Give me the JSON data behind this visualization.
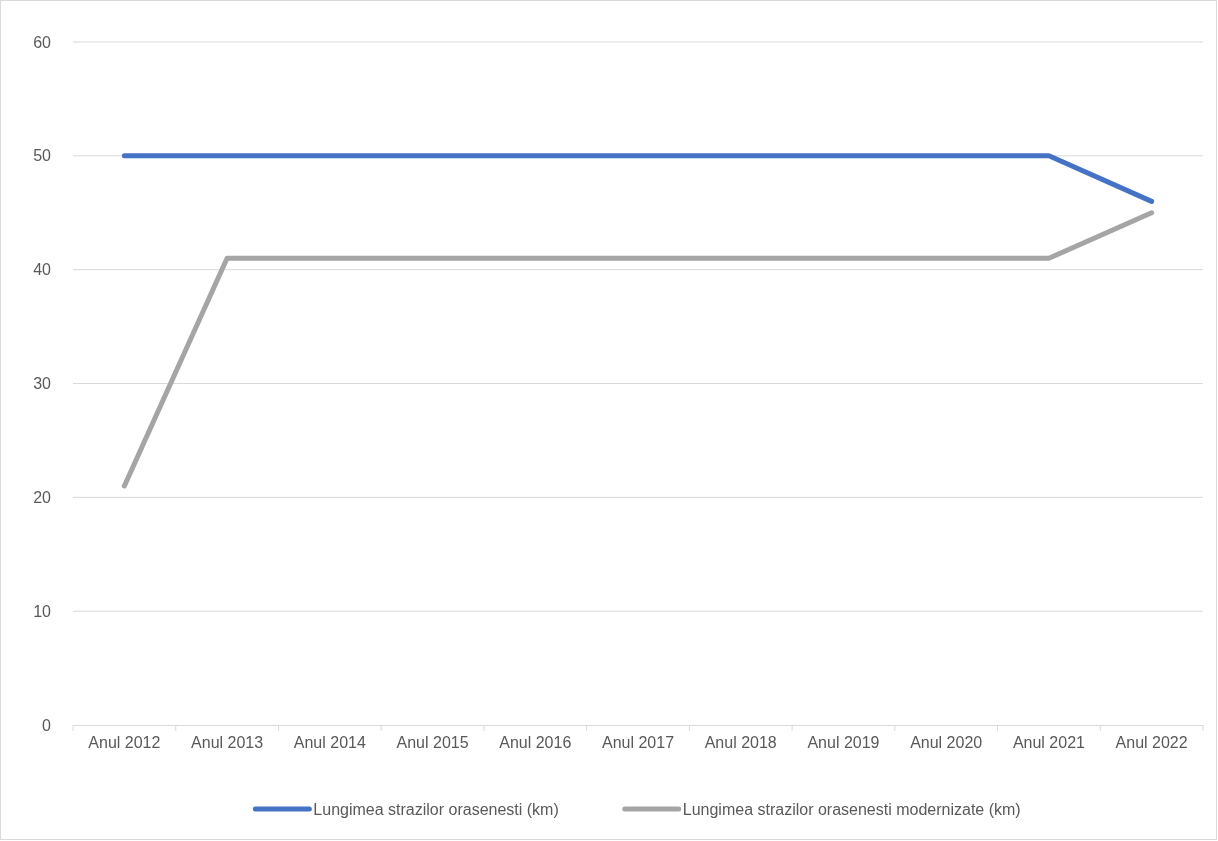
{
  "chart_data": {
    "type": "line",
    "categories": [
      "Anul 2012",
      "Anul 2013",
      "Anul 2014",
      "Anul 2015",
      "Anul 2016",
      "Anul 2017",
      "Anul 2018",
      "Anul 2019",
      "Anul 2020",
      "Anul 2021",
      "Anul 2022"
    ],
    "series": [
      {
        "name": "Lungimea strazilor orasenesti (km)",
        "color": "#4472c4",
        "values": [
          50,
          50,
          50,
          50,
          50,
          50,
          50,
          50,
          50,
          50,
          46
        ]
      },
      {
        "name": "Lungimea strazilor orasenesti modernizate (km)",
        "color": "#a5a5a5",
        "values": [
          21,
          41,
          41,
          41,
          41,
          41,
          41,
          41,
          41,
          41,
          45
        ]
      }
    ],
    "ylim": [
      0,
      60
    ],
    "yticks": [
      0,
      10,
      20,
      30,
      40,
      50,
      60
    ],
    "grid": "y",
    "legend": "bottom",
    "marker": "none",
    "line_style": "solid"
  }
}
